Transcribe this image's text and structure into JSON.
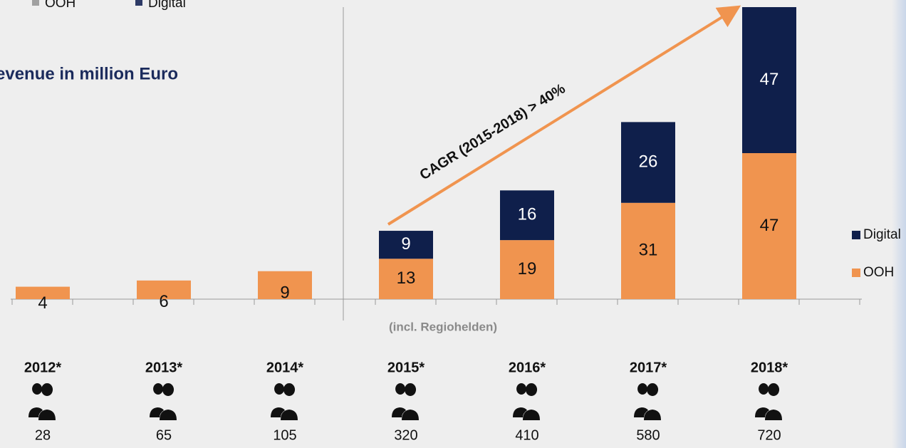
{
  "chart_data": {
    "type": "stacked_bar",
    "title": "evenue in million Euro",
    "categories": [
      "2012*",
      "2013*",
      "2014*",
      "2015*",
      "2016*",
      "2017*",
      "2018*"
    ],
    "series": [
      {
        "name": "OOH",
        "color": "#f0944f",
        "values": [
          4,
          6,
          9,
          13,
          19,
          31,
          47
        ]
      },
      {
        "name": "Digital",
        "color": "#0f1f4b",
        "values": [
          null,
          null,
          null,
          9,
          16,
          26,
          47
        ]
      }
    ],
    "employees": [
      28,
      65,
      105,
      320,
      410,
      580,
      720
    ],
    "annotations": {
      "cagr": "CAGR (2015-2018) > 40%",
      "note": "(incl. Regiohelden)"
    },
    "legend": "right"
  }
}
